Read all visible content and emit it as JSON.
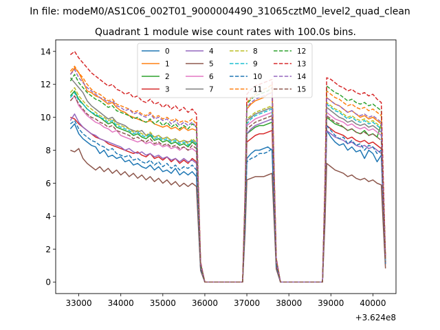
{
  "chart_data": {
    "type": "line",
    "suptitle": "In file: modeM0/AS1C06_002T01_9000004490_31065cztM0_level2_quad_clean",
    "title": "Quadrant 1 module wise count rates with 100.0s bins.",
    "xlabel": "",
    "ylabel": "",
    "x_offset_label": "+3.624e8",
    "xlim": [
      32450,
      40550
    ],
    "ylim": [
      -0.7,
      14.7
    ],
    "grid": false,
    "legend_position": "top-center",
    "x_ticks": [
      33000,
      34000,
      35000,
      36000,
      37000,
      38000,
      39000,
      40000
    ],
    "x_tick_labels": [
      "33000",
      "34000",
      "35000",
      "36000",
      "37000",
      "38000",
      "39000",
      "40000"
    ],
    "y_ticks": [
      0,
      2,
      4,
      6,
      8,
      10,
      12,
      14
    ],
    "y_tick_labels": [
      "0",
      "2",
      "4",
      "6",
      "8",
      "10",
      "12",
      "14"
    ],
    "segments": [
      {
        "x_start": 32800,
        "x_end": 35800,
        "step": 100
      },
      {
        "x_start": 37000,
        "x_end": 37600,
        "step": 100
      },
      {
        "x_start": 38900,
        "x_end": 40200,
        "step": 100
      }
    ],
    "series": [
      {
        "name": "0",
        "color": "#1f77b4",
        "dash": false,
        "values": [
          9.3,
          9.6,
          9.0,
          8.7,
          8.5,
          8.3,
          8.2,
          7.8,
          8.0,
          7.6,
          7.7,
          7.5,
          7.6,
          7.3,
          7.4,
          7.1,
          7.2,
          7.0,
          6.9,
          7.1,
          6.8,
          7.0,
          6.7,
          6.8,
          6.6,
          6.9,
          6.5,
          6.7,
          6.5,
          6.7,
          6.4,
          7.5,
          7.8,
          8.0,
          8.0,
          8.1,
          8.2,
          8.0,
          9.2,
          8.8,
          8.5,
          8.3,
          8.4,
          8.0,
          8.2,
          7.9,
          8.0,
          7.5,
          8.0,
          7.8,
          7.3,
          7.7
        ]
      },
      {
        "name": "1",
        "color": "#ff7f0e",
        "dash": false,
        "values": [
          12.6,
          13.0,
          12.7,
          12.2,
          11.6,
          11.5,
          11.3,
          11.2,
          11.0,
          10.8,
          10.9,
          10.6,
          10.4,
          10.3,
          10.1,
          10.0,
          9.9,
          9.8,
          9.7,
          9.8,
          9.6,
          9.5,
          9.4,
          9.5,
          9.3,
          9.4,
          9.2,
          9.4,
          9.2,
          9.3,
          9.2,
          10.5,
          10.8,
          11.0,
          11.1,
          11.2,
          11.4,
          11.5,
          11.2,
          11.0,
          10.8,
          10.7,
          10.5,
          10.3,
          10.4,
          10.2,
          10.0,
          10.1,
          9.9,
          10.0,
          9.8,
          9.6
        ]
      },
      {
        "name": "2",
        "color": "#2ca02c",
        "dash": false,
        "values": [
          11.3,
          11.6,
          11.1,
          10.8,
          10.5,
          10.3,
          10.1,
          10.0,
          9.8,
          9.6,
          9.7,
          9.4,
          9.3,
          9.2,
          9.1,
          8.9,
          9.0,
          8.8,
          8.7,
          8.9,
          8.6,
          8.7,
          8.5,
          8.6,
          8.4,
          8.5,
          8.3,
          8.4,
          8.2,
          8.5,
          8.3,
          9.0,
          9.2,
          9.4,
          9.5,
          9.5,
          9.6,
          9.7,
          10.0,
          9.8,
          9.6,
          9.5,
          9.4,
          9.2,
          9.3,
          9.1,
          9.0,
          9.2,
          8.9,
          9.0,
          8.8,
          9.6
        ]
      },
      {
        "name": "3",
        "color": "#d62728",
        "dash": false,
        "values": [
          10.0,
          9.9,
          9.6,
          9.4,
          9.2,
          9.0,
          8.8,
          8.7,
          8.6,
          8.4,
          8.3,
          8.2,
          8.1,
          8.0,
          7.9,
          7.8,
          7.9,
          7.7,
          7.6,
          7.8,
          7.5,
          7.6,
          7.4,
          7.6,
          7.3,
          7.5,
          7.2,
          7.4,
          7.2,
          7.5,
          7.3,
          8.5,
          8.7,
          8.9,
          9.0,
          9.0,
          9.1,
          9.2,
          9.5,
          9.3,
          9.1,
          9.0,
          8.9,
          8.7,
          8.8,
          8.6,
          8.5,
          8.6,
          8.4,
          8.5,
          8.3,
          8.1
        ]
      },
      {
        "name": "4",
        "color": "#9467bd",
        "dash": false,
        "values": [
          9.8,
          10.2,
          9.7,
          9.4,
          9.2,
          9.0,
          8.9,
          8.7,
          8.6,
          8.5,
          8.4,
          8.3,
          8.2,
          8.0,
          8.1,
          7.9,
          7.8,
          7.9,
          7.7,
          7.8,
          7.6,
          7.7,
          7.5,
          7.6,
          7.4,
          7.5,
          7.3,
          7.5,
          7.3,
          7.4,
          7.2,
          9.0,
          9.3,
          9.5,
          9.6,
          9.7,
          9.8,
          9.9,
          9.2,
          9.0,
          8.8,
          8.7,
          8.6,
          8.4,
          8.5,
          8.3,
          8.2,
          8.3,
          8.1,
          8.2,
          8.0,
          7.8
        ]
      },
      {
        "name": "5",
        "color": "#8c564b",
        "dash": false,
        "values": [
          8.0,
          7.9,
          8.1,
          7.5,
          7.2,
          7.0,
          6.8,
          7.0,
          6.7,
          6.9,
          6.6,
          6.8,
          6.5,
          6.7,
          6.4,
          6.6,
          6.3,
          6.5,
          6.2,
          6.4,
          6.1,
          6.3,
          6.0,
          6.2,
          5.9,
          6.1,
          5.8,
          6.0,
          5.8,
          6.0,
          5.8,
          6.2,
          6.3,
          6.4,
          6.4,
          6.4,
          6.5,
          6.6,
          7.2,
          7.0,
          6.8,
          6.7,
          6.6,
          6.4,
          6.5,
          6.3,
          6.2,
          6.3,
          6.1,
          6.2,
          6.0,
          5.9
        ]
      },
      {
        "name": "6",
        "color": "#e377c2",
        "dash": false,
        "values": [
          11.0,
          11.3,
          10.7,
          10.4,
          10.1,
          9.9,
          9.7,
          9.6,
          9.4,
          9.3,
          9.1,
          9.2,
          8.9,
          8.8,
          8.7,
          8.6,
          8.5,
          8.6,
          8.4,
          8.5,
          8.3,
          8.4,
          8.2,
          8.3,
          8.1,
          8.2,
          8.0,
          8.2,
          8.0,
          8.1,
          7.9,
          9.5,
          9.7,
          9.9,
          10.0,
          10.1,
          10.2,
          10.3,
          10.3,
          10.1,
          9.9,
          9.8,
          9.7,
          9.5,
          9.6,
          9.4,
          9.3,
          9.4,
          9.2,
          9.3,
          9.1,
          8.9
        ]
      },
      {
        "name": "7",
        "color": "#7f7f7f",
        "dash": false,
        "values": [
          12.4,
          12.1,
          11.8,
          11.5,
          11.0,
          10.7,
          10.5,
          10.3,
          10.1,
          9.9,
          10.0,
          9.7,
          9.6,
          9.5,
          9.3,
          9.2,
          9.1,
          9.2,
          8.9,
          9.0,
          8.8,
          8.9,
          8.7,
          8.8,
          8.6,
          8.7,
          8.5,
          8.6,
          8.5,
          8.6,
          8.4,
          9.8,
          10.0,
          10.2,
          10.3,
          10.4,
          10.5,
          10.6,
          10.6,
          10.4,
          10.2,
          10.0,
          9.9,
          9.7,
          9.8,
          9.6,
          9.5,
          9.6,
          9.4,
          9.5,
          9.3,
          9.1
        ]
      },
      {
        "name": "8",
        "color": "#bcbd22",
        "dash": true,
        "values": [
          11.5,
          11.8,
          11.3,
          11.0,
          10.7,
          10.5,
          10.3,
          10.1,
          10.0,
          9.8,
          9.9,
          9.6,
          9.5,
          9.4,
          9.3,
          9.1,
          9.2,
          9.0,
          8.9,
          9.1,
          8.8,
          8.9,
          8.7,
          8.8,
          8.6,
          8.7,
          8.5,
          8.6,
          8.4,
          8.7,
          8.5,
          9.9,
          10.1,
          10.3,
          10.4,
          10.5,
          10.6,
          10.7,
          10.9,
          10.7,
          10.5,
          10.4,
          10.2,
          10.0,
          10.1,
          9.9,
          9.8,
          9.9,
          9.7,
          9.8,
          9.6,
          9.4
        ]
      },
      {
        "name": "9",
        "color": "#17becf",
        "dash": true,
        "values": [
          11.2,
          11.5,
          11.0,
          10.8,
          10.5,
          10.3,
          10.2,
          10.0,
          9.9,
          9.7,
          9.8,
          9.5,
          9.4,
          9.3,
          9.2,
          9.0,
          9.1,
          8.9,
          8.8,
          9.0,
          8.7,
          8.8,
          8.6,
          8.7,
          8.5,
          8.6,
          8.4,
          8.5,
          8.3,
          8.6,
          8.4,
          9.6,
          9.9,
          10.1,
          10.2,
          10.3,
          10.4,
          10.5,
          10.8,
          10.6,
          10.4,
          10.3,
          10.1,
          9.9,
          10.0,
          9.8,
          9.7,
          9.8,
          9.6,
          9.7,
          9.5,
          9.3
        ]
      },
      {
        "name": "10",
        "color": "#1f77b4",
        "dash": true,
        "values": [
          9.6,
          9.8,
          9.3,
          9.0,
          8.8,
          8.6,
          8.5,
          8.3,
          8.2,
          8.0,
          8.1,
          7.8,
          7.7,
          7.6,
          7.7,
          7.4,
          7.5,
          7.3,
          7.2,
          7.4,
          7.1,
          7.3,
          7.0,
          7.2,
          6.9,
          7.1,
          6.8,
          7.0,
          6.9,
          7.1,
          6.8,
          7.3,
          7.5,
          7.6,
          7.8,
          7.8,
          7.9,
          8.1,
          9.5,
          9.2,
          8.9,
          8.7,
          8.8,
          8.4,
          8.6,
          8.3,
          8.4,
          8.0,
          8.3,
          8.2,
          7.8,
          8.0
        ]
      },
      {
        "name": "11",
        "color": "#ff7f0e",
        "dash": true,
        "values": [
          12.8,
          13.1,
          12.7,
          12.4,
          12.0,
          11.7,
          11.5,
          11.4,
          11.2,
          11.0,
          11.1,
          10.8,
          10.7,
          10.6,
          10.5,
          10.3,
          10.4,
          10.2,
          10.1,
          10.3,
          10.0,
          10.1,
          9.9,
          10.0,
          9.8,
          9.9,
          9.7,
          9.8,
          9.7,
          9.9,
          9.6,
          10.9,
          11.2,
          11.4,
          11.6,
          11.7,
          11.8,
          12.0,
          11.6,
          11.4,
          11.2,
          11.1,
          10.9,
          10.7,
          10.8,
          10.6,
          10.5,
          10.6,
          10.4,
          10.5,
          10.3,
          10.1
        ]
      },
      {
        "name": "12",
        "color": "#2ca02c",
        "dash": true,
        "values": [
          12.2,
          12.6,
          12.1,
          11.8,
          11.5,
          11.3,
          11.1,
          11.0,
          10.8,
          10.6,
          10.7,
          10.4,
          10.3,
          10.2,
          10.1,
          9.9,
          10.0,
          9.8,
          9.7,
          9.9,
          9.6,
          9.8,
          9.5,
          9.7,
          9.4,
          9.6,
          9.3,
          9.5,
          9.3,
          9.6,
          9.4,
          10.8,
          11.1,
          11.3,
          11.4,
          11.5,
          11.6,
          11.8,
          11.9,
          11.7,
          11.5,
          11.4,
          11.2,
          11.0,
          11.1,
          10.9,
          10.8,
          10.9,
          10.7,
          10.8,
          10.6,
          10.4
        ]
      },
      {
        "name": "13",
        "color": "#d62728",
        "dash": true,
        "values": [
          13.8,
          14.0,
          13.6,
          13.3,
          13.0,
          12.7,
          12.5,
          12.3,
          12.1,
          11.9,
          12.0,
          11.7,
          11.6,
          11.4,
          11.5,
          11.2,
          11.3,
          11.0,
          10.9,
          11.1,
          10.8,
          10.9,
          10.6,
          10.8,
          10.5,
          10.7,
          10.4,
          10.6,
          10.3,
          10.5,
          10.2,
          11.4,
          11.7,
          11.9,
          12.0,
          12.1,
          12.2,
          12.3,
          12.4,
          12.3,
          12.1,
          11.9,
          11.8,
          11.6,
          11.7,
          11.5,
          11.4,
          11.5,
          11.3,
          11.4,
          11.1,
          10.9
        ]
      },
      {
        "name": "14",
        "color": "#9467bd",
        "dash": true,
        "values": [
          12.6,
          12.9,
          12.4,
          12.1,
          11.8,
          11.6,
          11.4,
          11.2,
          11.1,
          10.9,
          11.0,
          10.7,
          10.6,
          10.4,
          10.5,
          10.2,
          10.3,
          10.1,
          10.0,
          10.2,
          9.9,
          10.0,
          9.8,
          9.9,
          9.6,
          9.8,
          9.5,
          9.7,
          9.5,
          9.7,
          9.4,
          10.6,
          10.9,
          11.1,
          11.2,
          11.3,
          11.4,
          11.5,
          11.2,
          11.0,
          10.8,
          10.7,
          10.5,
          10.3,
          10.4,
          10.2,
          10.1,
          10.2,
          10.0,
          10.1,
          9.9,
          9.7
        ]
      },
      {
        "name": "15",
        "color": "#8c564b",
        "dash": true,
        "values": [
          11.0,
          11.3,
          10.8,
          10.5,
          10.2,
          10.0,
          9.9,
          9.7,
          9.6,
          9.4,
          9.5,
          9.2,
          9.1,
          9.0,
          8.9,
          8.7,
          8.8,
          8.6,
          8.5,
          8.7,
          8.4,
          8.5,
          8.3,
          8.4,
          8.2,
          8.3,
          8.1,
          8.2,
          8.0,
          8.3,
          8.1,
          9.3,
          9.5,
          9.7,
          9.8,
          9.9,
          10.0,
          10.1,
          10.1,
          9.9,
          9.7,
          9.6,
          9.4,
          9.2,
          9.3,
          9.1,
          9.0,
          9.1,
          8.9,
          9.0,
          8.8,
          8.6
        ]
      }
    ]
  }
}
